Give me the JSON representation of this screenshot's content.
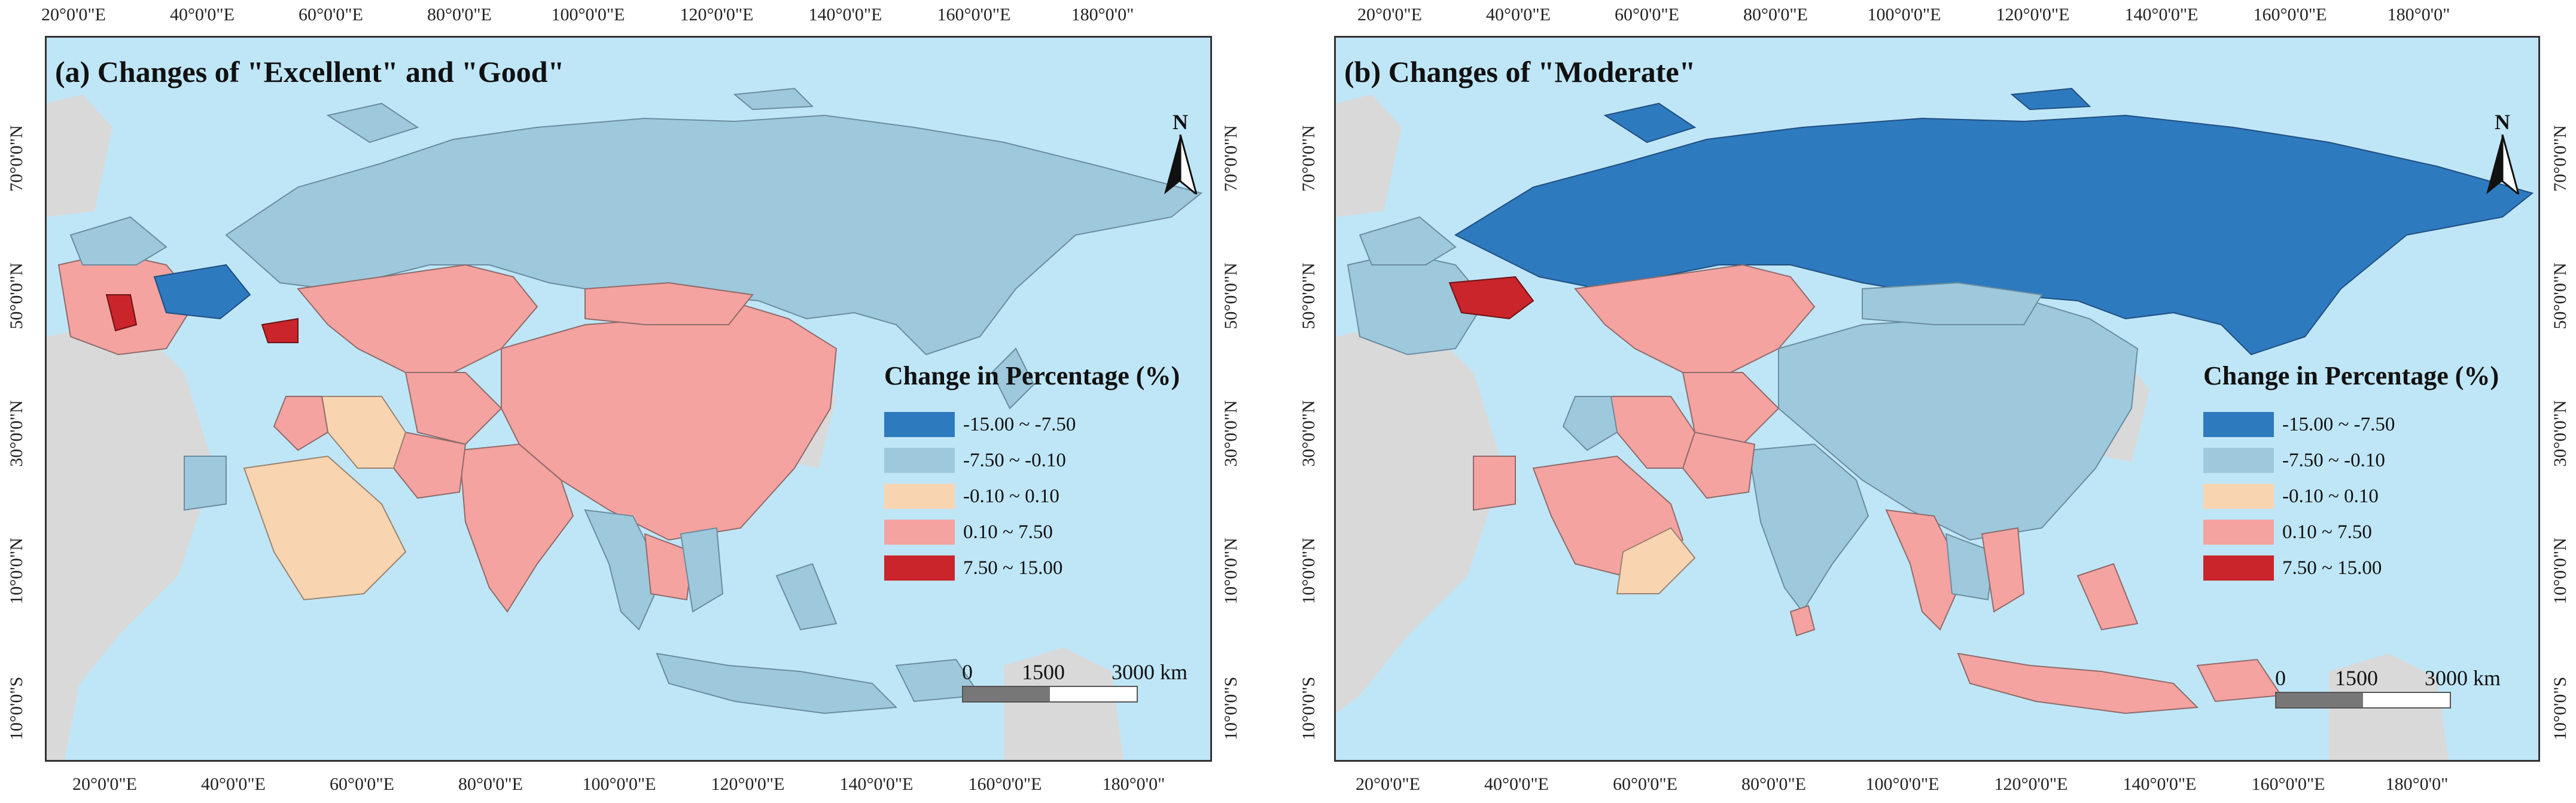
{
  "axes": {
    "longitude_ticks": [
      "20°0'0\"E",
      "40°0'0\"E",
      "60°0'0\"E",
      "80°0'0\"E",
      "100°0'0\"E",
      "120°0'0\"E",
      "140°0'0\"E",
      "160°0'0\"E",
      "180°0'0\""
    ],
    "latitude_ticks": [
      "70°0'0\"N",
      "50°0'0\"N",
      "30°0'0\"N",
      "10°0'0\"N",
      "10°0'0\"S"
    ]
  },
  "colors": {
    "water": "#bfe6f7",
    "outside": "#d9d9d9",
    "class_1": "#2e7abf",
    "class_2": "#9ec8dc",
    "class_3": "#f8d5b0",
    "class_4": "#f4a3a0",
    "class_5": "#c9252a"
  },
  "legend": {
    "title": "Change in Percentage (%)",
    "items": [
      {
        "label": "-15.00 ~ -7.50",
        "color": "#2e7abf"
      },
      {
        "label": "-7.50 ~ -0.10",
        "color": "#9ec8dc"
      },
      {
        "label": "-0.10 ~ 0.10",
        "color": "#f8d5b0"
      },
      {
        "label": "0.10 ~ 7.50",
        "color": "#f4a3a0"
      },
      {
        "label": "7.50 ~ 15.00",
        "color": "#c9252a"
      }
    ]
  },
  "north_arrow": {
    "label": "N"
  },
  "scale": {
    "zero": "0",
    "mid": "1500",
    "end": "3000 km"
  },
  "panels": [
    {
      "title": "(a) Changes of \"Excellent\" and \"Good\""
    },
    {
      "title": "(b) Changes of \"Moderate\""
    }
  ]
}
